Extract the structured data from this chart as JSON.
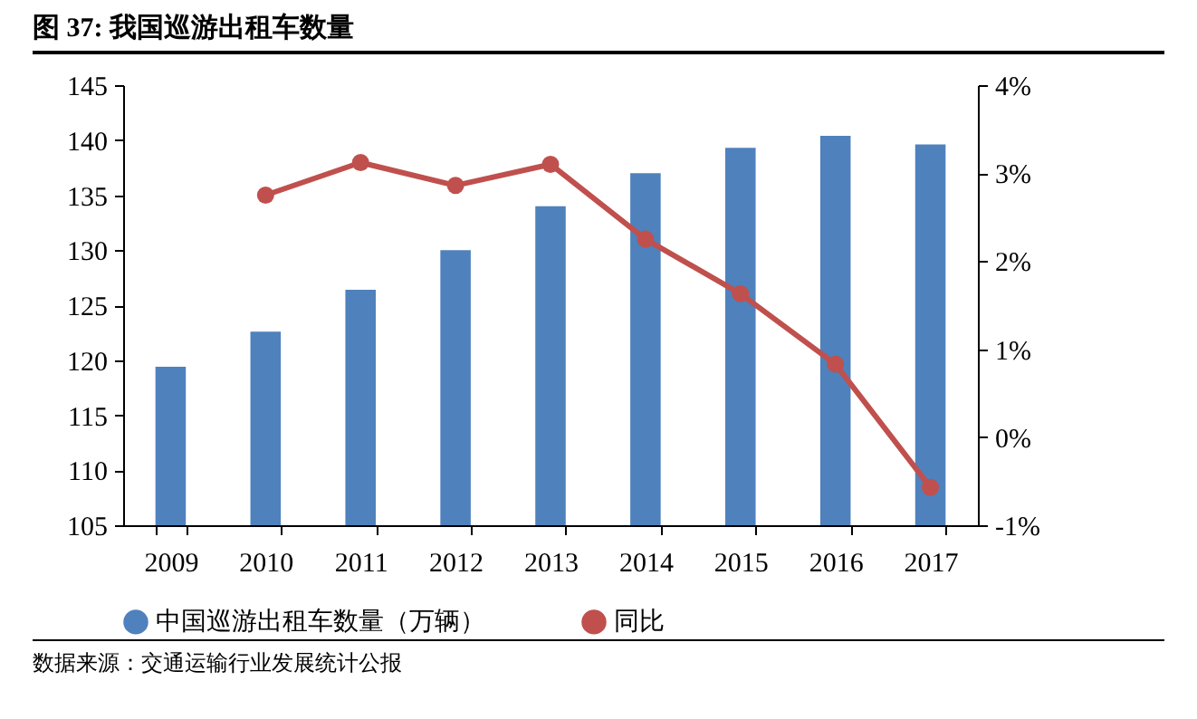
{
  "chart_data": {
    "type": "bar",
    "title": "图 37: 我国巡游出租车数量",
    "categories": [
      "2009",
      "2010",
      "2011",
      "2012",
      "2013",
      "2014",
      "2015",
      "2016",
      "2017"
    ],
    "series": [
      {
        "name": "中国巡游出租车数量（万辆）",
        "color": "#4f81bd",
        "values": [
          119.4,
          122.6,
          126.4,
          130.0,
          134.0,
          137.0,
          139.3,
          140.4,
          139.6
        ]
      },
      {
        "name": "同比",
        "type": "line",
        "axis": "y2",
        "color": "#c0504d",
        "marker": "circle",
        "values": [
          null,
          2.75,
          3.12,
          2.86,
          3.1,
          2.25,
          1.63,
          0.83,
          -0.57
        ]
      }
    ],
    "ylim": [
      105,
      145
    ],
    "yticks": [
      105,
      110,
      115,
      120,
      125,
      130,
      135,
      140,
      145
    ],
    "y2lim": [
      -1,
      4
    ],
    "y2ticks": [
      {
        "value": -1,
        "label": "-1%"
      },
      {
        "value": 0,
        "label": "0%"
      },
      {
        "value": 1,
        "label": "1%"
      },
      {
        "value": 2,
        "label": "2%"
      },
      {
        "value": 3,
        "label": "3%"
      },
      {
        "value": 4,
        "label": "4%"
      }
    ],
    "grid": false,
    "legend": "bottom",
    "annotations": [
      "数据来源：交通运输行业发展统计公报"
    ]
  }
}
